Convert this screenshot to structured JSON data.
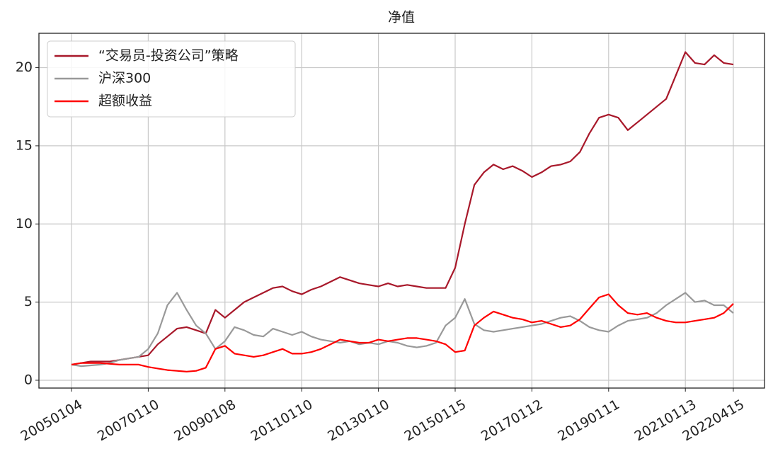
{
  "chart_data": {
    "type": "line",
    "title": "净值",
    "categories": [
      "20050104",
      null,
      null,
      null,
      null,
      null,
      null,
      null,
      "20070110",
      null,
      null,
      null,
      null,
      null,
      null,
      null,
      "20090108",
      null,
      null,
      null,
      null,
      null,
      null,
      null,
      "20110110",
      null,
      null,
      null,
      null,
      null,
      null,
      null,
      "20130110",
      null,
      null,
      null,
      null,
      null,
      null,
      null,
      "20150115",
      null,
      null,
      null,
      null,
      null,
      null,
      null,
      "20170112",
      null,
      null,
      null,
      null,
      null,
      null,
      null,
      "20190111",
      null,
      null,
      null,
      null,
      null,
      null,
      null,
      "20210113",
      null,
      null,
      null,
      null,
      "20220415"
    ],
    "series": [
      {
        "name": "“交易员-投资公司”策略",
        "color": "#a8182a",
        "values": [
          1.0,
          1.1,
          1.2,
          1.2,
          1.2,
          1.3,
          1.4,
          1.5,
          1.6,
          2.3,
          2.8,
          3.3,
          3.4,
          3.2,
          3.0,
          4.5,
          4.0,
          4.5,
          5.0,
          5.3,
          5.6,
          5.9,
          6.0,
          5.7,
          5.5,
          5.8,
          6.0,
          6.3,
          6.6,
          6.4,
          6.2,
          6.1,
          6.0,
          6.2,
          6.0,
          6.1,
          6.0,
          5.9,
          5.9,
          5.9,
          7.2,
          10.0,
          12.5,
          13.3,
          13.8,
          13.5,
          13.7,
          13.4,
          13.0,
          13.3,
          13.7,
          13.8,
          14.0,
          14.6,
          15.8,
          16.8,
          17.0,
          16.8,
          16.0,
          16.5,
          17.0,
          17.5,
          18.0,
          19.5,
          21.0,
          20.3,
          20.2,
          20.8,
          20.3,
          20.2
        ]
      },
      {
        "name": "沪深300",
        "color": "#999999",
        "values": [
          1.0,
          0.9,
          0.95,
          1.0,
          1.1,
          1.3,
          1.4,
          1.5,
          2.0,
          3.0,
          4.8,
          5.6,
          4.5,
          3.5,
          3.0,
          2.0,
          2.5,
          3.4,
          3.2,
          2.9,
          2.8,
          3.3,
          3.1,
          2.9,
          3.1,
          2.8,
          2.6,
          2.5,
          2.4,
          2.5,
          2.3,
          2.4,
          2.3,
          2.5,
          2.4,
          2.2,
          2.1,
          2.2,
          2.4,
          3.5,
          4.0,
          5.2,
          3.6,
          3.2,
          3.1,
          3.2,
          3.3,
          3.4,
          3.5,
          3.6,
          3.8,
          4.0,
          4.1,
          3.8,
          3.4,
          3.2,
          3.1,
          3.5,
          3.8,
          3.9,
          4.0,
          4.3,
          4.8,
          5.2,
          5.6,
          5.0,
          5.1,
          4.8,
          4.8,
          4.3
        ]
      },
      {
        "name": "超额收益",
        "color": "#ff0000",
        "values": [
          1.0,
          1.1,
          1.1,
          1.1,
          1.05,
          1.0,
          1.0,
          1.0,
          0.85,
          0.75,
          0.65,
          0.6,
          0.55,
          0.6,
          0.8,
          2.0,
          2.2,
          1.7,
          1.6,
          1.5,
          1.6,
          1.8,
          2.0,
          1.7,
          1.7,
          1.8,
          2.0,
          2.3,
          2.6,
          2.5,
          2.4,
          2.4,
          2.6,
          2.5,
          2.6,
          2.7,
          2.7,
          2.6,
          2.5,
          2.3,
          1.8,
          1.9,
          3.5,
          4.0,
          4.4,
          4.2,
          4.0,
          3.9,
          3.7,
          3.8,
          3.6,
          3.4,
          3.5,
          3.9,
          4.6,
          5.3,
          5.5,
          4.8,
          4.3,
          4.2,
          4.3,
          4.0,
          3.8,
          3.7,
          3.7,
          3.8,
          3.9,
          4.0,
          4.3,
          4.9
        ]
      }
    ],
    "ylim": [
      -0.5,
      22.2
    ],
    "yticks": [
      0,
      5,
      10,
      15,
      20
    ],
    "grid": true,
    "legend": "upper-left"
  }
}
